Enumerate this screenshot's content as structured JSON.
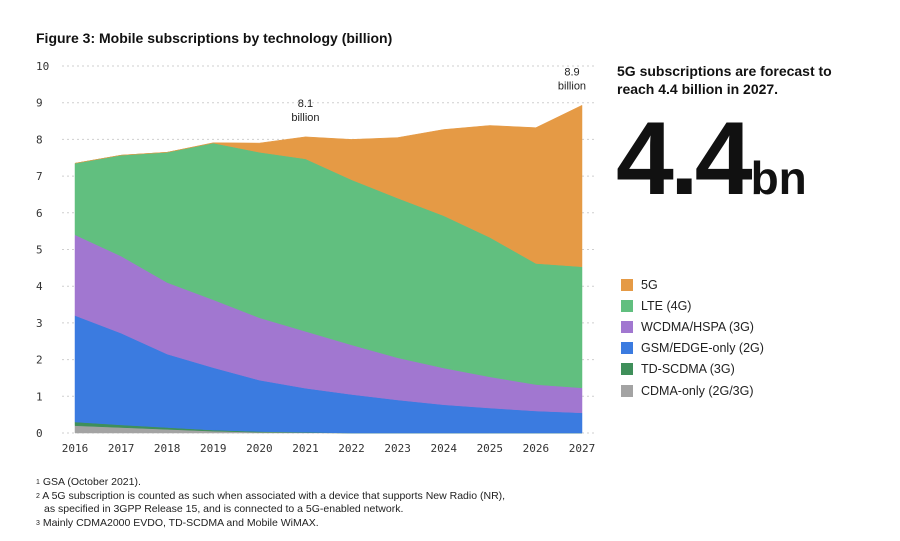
{
  "title": "Figure 3: Mobile subscriptions by technology (billion)",
  "headline": "5G subscriptions are forecast to reach 4.4 billion in 2027.",
  "big_number": "4.4",
  "big_unit": "bn",
  "footnotes": [
    "GSA (October 2021).",
    "A 5G subscription is counted as such when associated with a device that supports New Radio (NR),",
    "as specified in 3GPP Release 15, and is connected to a 5G-enabled network.",
    "Mainly CDMA2000 EVDO, TD-SCDMA and Mobile WiMAX."
  ],
  "footnote_marks": [
    "1",
    "2",
    "",
    "3"
  ],
  "chart_data": {
    "type": "area",
    "stacked": true,
    "title": "Figure 3: Mobile subscriptions by technology (billion)",
    "x": [
      2016,
      2017,
      2018,
      2019,
      2020,
      2021,
      2022,
      2023,
      2024,
      2025,
      2026,
      2027
    ],
    "ylim": [
      0,
      10
    ],
    "yticks": [
      0,
      1,
      2,
      3,
      4,
      5,
      6,
      7,
      8,
      9,
      10
    ],
    "grid": true,
    "legend_position": "right",
    "series": [
      {
        "name": "CDMA-only (2G/3G)",
        "color": "#a3a3a3",
        "values": [
          0.2,
          0.15,
          0.1,
          0.05,
          0.02,
          0.01,
          0,
          0,
          0,
          0,
          0,
          0
        ]
      },
      {
        "name": "TD-SCDMA (3G)",
        "color": "#3f8f5a",
        "values": [
          0.1,
          0.07,
          0.05,
          0.03,
          0.02,
          0.01,
          0,
          0,
          0,
          0,
          0,
          0
        ]
      },
      {
        "name": "GSM/EDGE-only (2G)",
        "color": "#3b7be0",
        "values": [
          2.9,
          2.5,
          2.0,
          1.7,
          1.4,
          1.2,
          1.05,
          0.9,
          0.77,
          0.68,
          0.6,
          0.55
        ]
      },
      {
        "name": "WCDMA/HSPA (3G)",
        "color": "#a177d0",
        "values": [
          2.2,
          2.1,
          1.95,
          1.85,
          1.7,
          1.55,
          1.35,
          1.15,
          1.0,
          0.85,
          0.72,
          0.68
        ]
      },
      {
        "name": "LTE (4G)",
        "color": "#61bf7f",
        "values": [
          1.95,
          2.75,
          3.55,
          4.27,
          4.51,
          4.7,
          4.5,
          4.35,
          4.15,
          3.8,
          3.3,
          3.3
        ]
      },
      {
        "name": "5G",
        "color": "#e59a45",
        "values": [
          0,
          0,
          0,
          0.01,
          0.25,
          0.6,
          1.1,
          1.65,
          2.35,
          3.05,
          3.7,
          4.4
        ]
      }
    ],
    "annotations": [
      {
        "x": 2021,
        "lines": [
          "8.1",
          "billion"
        ]
      },
      {
        "x": 2027,
        "lines": [
          "8.9",
          "billion"
        ]
      }
    ]
  }
}
